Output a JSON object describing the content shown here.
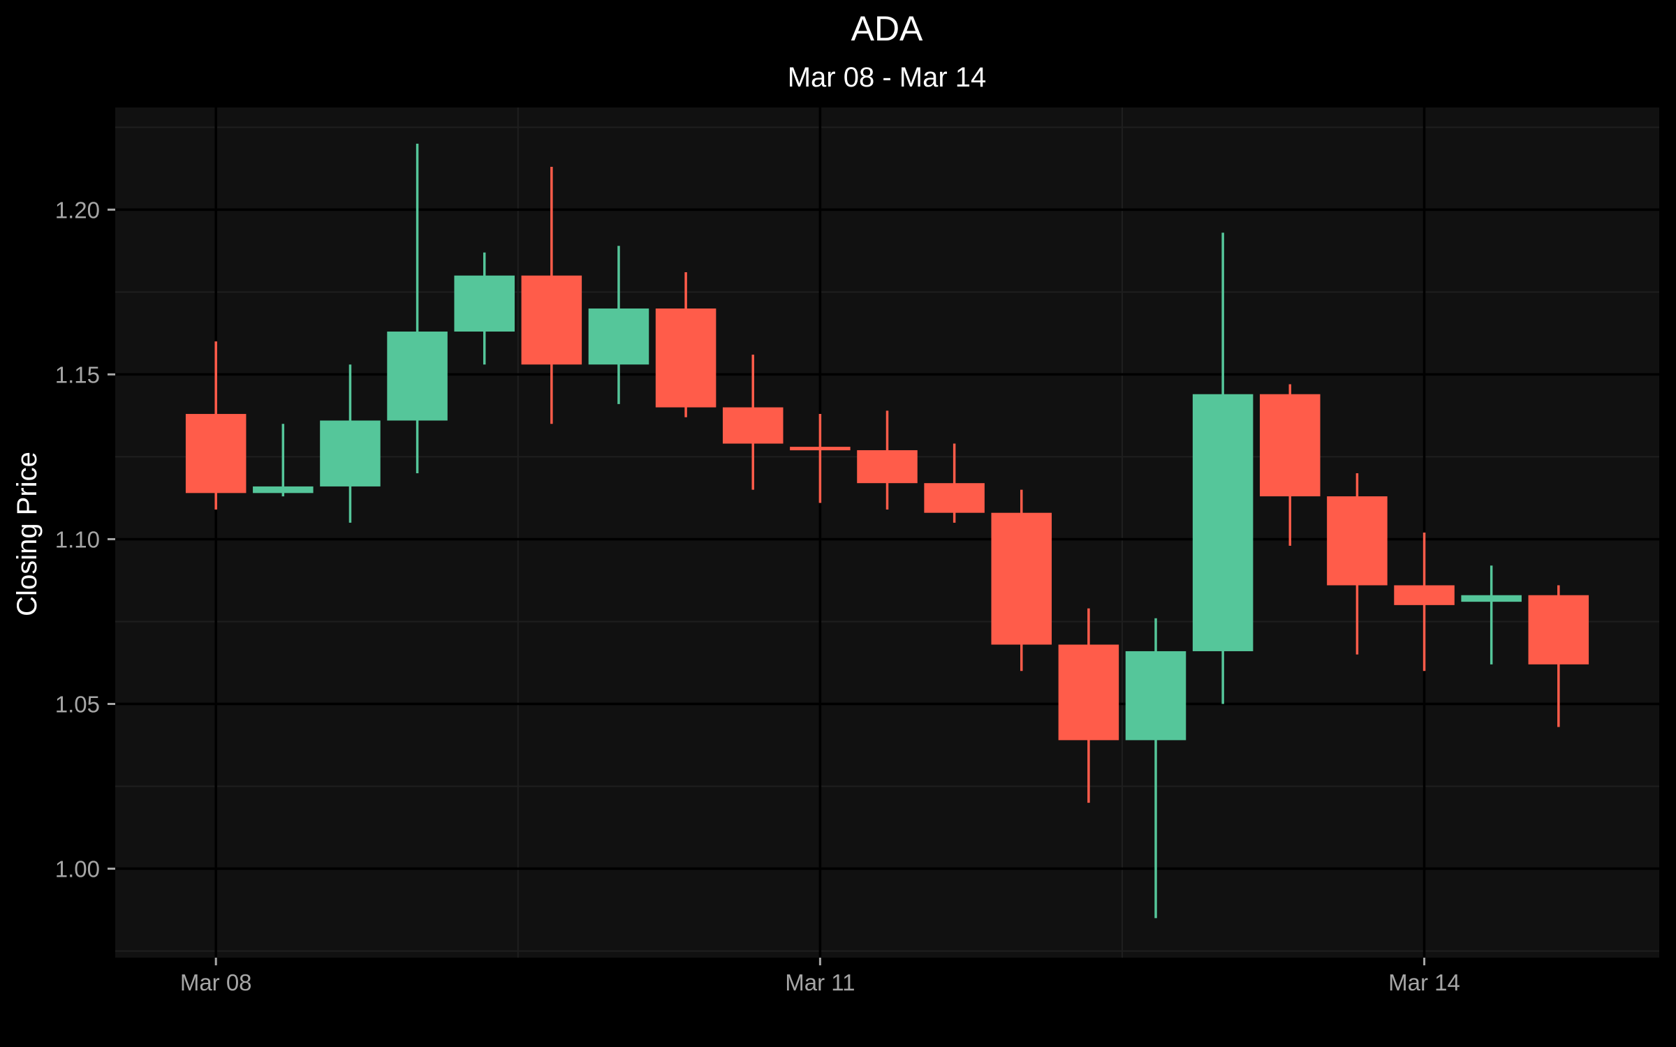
{
  "chart_data": {
    "type": "candlestick",
    "title": "ADA",
    "subtitle": "Mar 08 - Mar 14",
    "ylabel": "Closing Price",
    "xlabel": "",
    "ylim": [
      0.973,
      1.231
    ],
    "xlim": [
      -1.5,
      21.5
    ],
    "y_ticks": [
      1.0,
      1.05,
      1.1,
      1.15,
      1.2
    ],
    "y_tick_labels": [
      "1.00",
      "1.05",
      "1.10",
      "1.15",
      "1.20"
    ],
    "x_ticks": [
      0,
      9,
      18
    ],
    "x_tick_labels": [
      "Mar 08",
      "Mar 11",
      "Mar 14"
    ],
    "x_minor_ticks": [
      4.5,
      13.5
    ],
    "grid": true,
    "colors": {
      "background": "#000000",
      "panel": "#111111",
      "grid_major": "#000000",
      "grid_minor": "#1f1f1f",
      "up": "#55c69a",
      "down": "#ff5c4a"
    },
    "candles": [
      {
        "x": 0,
        "open": 1.138,
        "high": 1.16,
        "low": 1.109,
        "close": 1.114
      },
      {
        "x": 1,
        "open": 1.114,
        "high": 1.135,
        "low": 1.113,
        "close": 1.116
      },
      {
        "x": 2,
        "open": 1.116,
        "high": 1.153,
        "low": 1.105,
        "close": 1.136
      },
      {
        "x": 3,
        "open": 1.136,
        "high": 1.22,
        "low": 1.12,
        "close": 1.163
      },
      {
        "x": 4,
        "open": 1.163,
        "high": 1.187,
        "low": 1.153,
        "close": 1.18
      },
      {
        "x": 5,
        "open": 1.18,
        "high": 1.213,
        "low": 1.135,
        "close": 1.153
      },
      {
        "x": 6,
        "open": 1.153,
        "high": 1.189,
        "low": 1.141,
        "close": 1.17
      },
      {
        "x": 7,
        "open": 1.17,
        "high": 1.181,
        "low": 1.137,
        "close": 1.14
      },
      {
        "x": 8,
        "open": 1.14,
        "high": 1.156,
        "low": 1.115,
        "close": 1.129
      },
      {
        "x": 9,
        "open": 1.128,
        "high": 1.138,
        "low": 1.111,
        "close": 1.127
      },
      {
        "x": 10,
        "open": 1.127,
        "high": 1.139,
        "low": 1.109,
        "close": 1.117
      },
      {
        "x": 11,
        "open": 1.117,
        "high": 1.129,
        "low": 1.105,
        "close": 1.108
      },
      {
        "x": 12,
        "open": 1.108,
        "high": 1.115,
        "low": 1.06,
        "close": 1.068
      },
      {
        "x": 13,
        "open": 1.068,
        "high": 1.079,
        "low": 1.02,
        "close": 1.039
      },
      {
        "x": 14,
        "open": 1.039,
        "high": 1.076,
        "low": 0.985,
        "close": 1.066
      },
      {
        "x": 15,
        "open": 1.066,
        "high": 1.193,
        "low": 1.05,
        "close": 1.144
      },
      {
        "x": 16,
        "open": 1.144,
        "high": 1.147,
        "low": 1.098,
        "close": 1.113
      },
      {
        "x": 17,
        "open": 1.113,
        "high": 1.12,
        "low": 1.065,
        "close": 1.086
      },
      {
        "x": 18,
        "open": 1.086,
        "high": 1.102,
        "low": 1.06,
        "close": 1.08
      },
      {
        "x": 19,
        "open": 1.081,
        "high": 1.092,
        "low": 1.062,
        "close": 1.083
      },
      {
        "x": 20,
        "open": 1.083,
        "high": 1.086,
        "low": 1.043,
        "close": 1.062
      }
    ]
  }
}
